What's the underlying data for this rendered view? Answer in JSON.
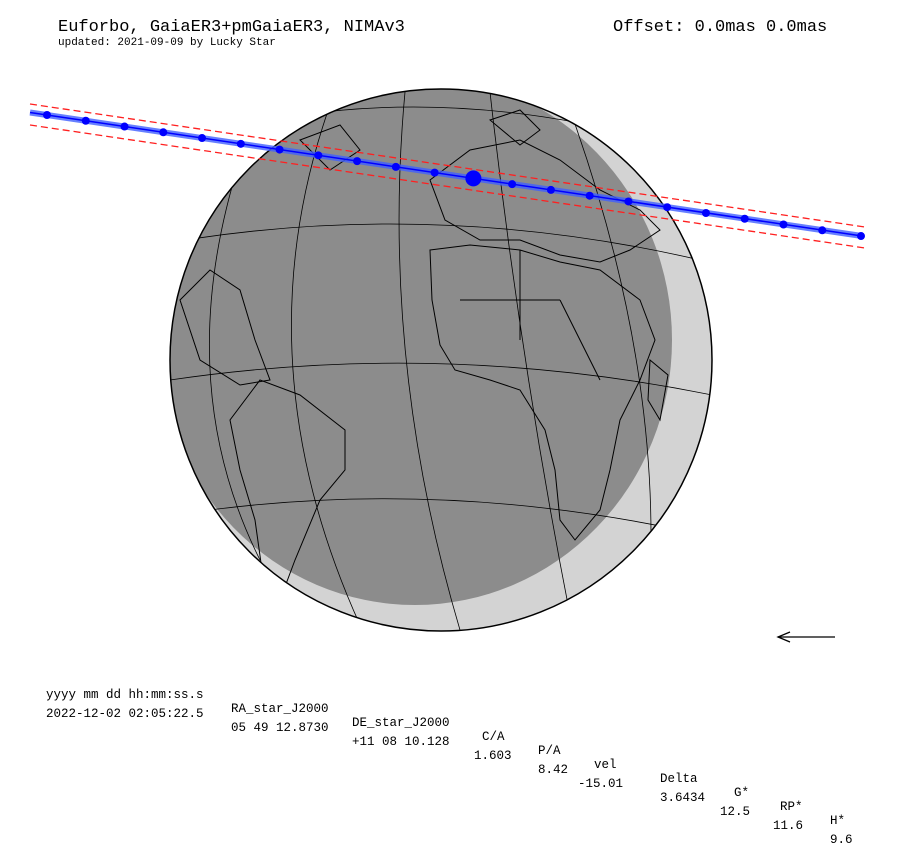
{
  "header": {
    "title": "Euforbo, GaiaER3+pmGaiaER3, NIMAv3",
    "subtitle": "updated: 2021-09-09 by Lucky Star",
    "offset": "Offset: 0.0mas 0.0mas"
  },
  "map": {
    "projection": "orthographic globe",
    "night_color": "#8c8c8c",
    "twilight_color": "#d3d3d3",
    "path_color": "#0000ff",
    "limit_color": "#ff0000",
    "direction": "arrow-left-icon",
    "track_points": 22,
    "closest_point_index": 11
  },
  "table": {
    "headers": [
      "yyyy mm dd hh:mm:ss.s",
      "RA_star_J2000",
      "DE_star_J2000",
      "C/A",
      "P/A",
      "vel",
      "Delta",
      "G*",
      "RP*",
      "H*"
    ],
    "values": [
      "2022-12-02 02:05:22.5",
      "05 49 12.8730",
      "+11 08 10.128",
      "1.603",
      "8.42",
      "-15.01",
      "3.6434",
      "12.5",
      "11.6",
      "9.6"
    ]
  }
}
